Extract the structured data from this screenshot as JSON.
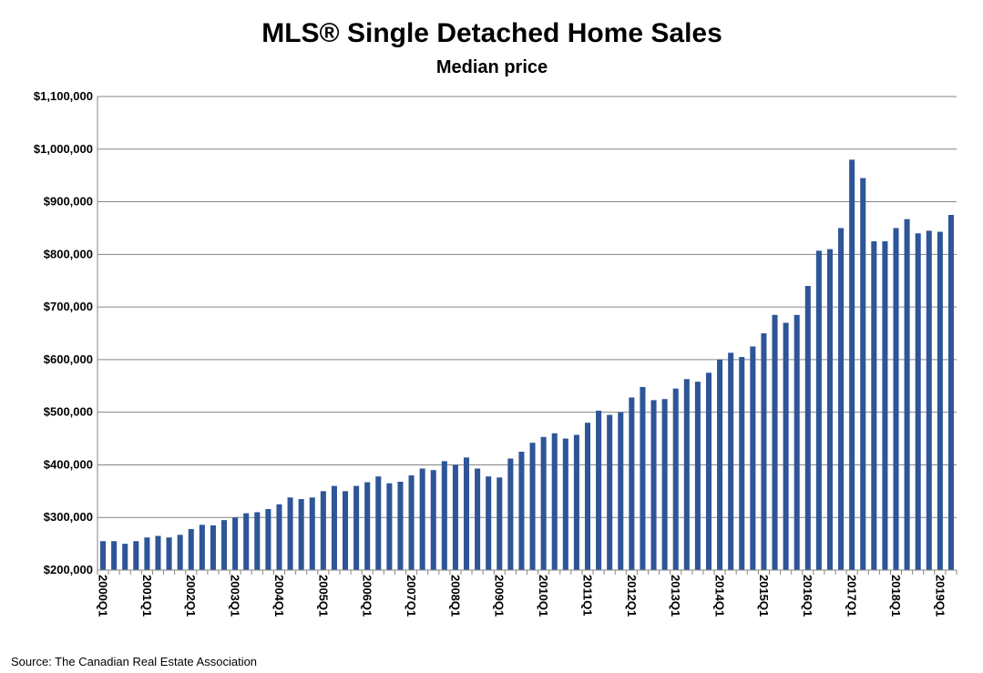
{
  "chart_data": {
    "type": "bar",
    "title": "MLS® Single Detached Home Sales",
    "subtitle": "Median price",
    "source": "Source: The Canadian Real Estate Association",
    "xlabel": "",
    "ylabel": "",
    "ylim": [
      200000,
      1100000
    ],
    "y_ticks": [
      200000,
      300000,
      400000,
      500000,
      600000,
      700000,
      800000,
      900000,
      1000000,
      1100000
    ],
    "y_tick_labels": [
      "$200,000",
      "$300,000",
      "$400,000",
      "$500,000",
      "$600,000",
      "$700,000",
      "$800,000",
      "$900,000",
      "$1,000,000",
      "$1,100,000"
    ],
    "x_tick_labels": [
      "2000Q1",
      "2001Q1",
      "2002Q1",
      "2003Q1",
      "2004Q1",
      "2005Q1",
      "2006Q1",
      "2007Q1",
      "2008Q1",
      "2009Q1",
      "2010Q1",
      "2011Q1",
      "2012Q1",
      "2013Q1",
      "2014Q1",
      "2015Q1",
      "2016Q1",
      "2017Q1",
      "2018Q1",
      "2019Q1"
    ],
    "grid": true,
    "legend": "none",
    "bar_color": "#2E5597",
    "categories": [
      "2000Q1",
      "2000Q2",
      "2000Q3",
      "2000Q4",
      "2001Q1",
      "2001Q2",
      "2001Q3",
      "2001Q4",
      "2002Q1",
      "2002Q2",
      "2002Q3",
      "2002Q4",
      "2003Q1",
      "2003Q2",
      "2003Q3",
      "2003Q4",
      "2004Q1",
      "2004Q2",
      "2004Q3",
      "2004Q4",
      "2005Q1",
      "2005Q2",
      "2005Q3",
      "2005Q4",
      "2006Q1",
      "2006Q2",
      "2006Q3",
      "2006Q4",
      "2007Q1",
      "2007Q2",
      "2007Q3",
      "2007Q4",
      "2008Q1",
      "2008Q2",
      "2008Q3",
      "2008Q4",
      "2009Q1",
      "2009Q2",
      "2009Q3",
      "2009Q4",
      "2010Q1",
      "2010Q2",
      "2010Q3",
      "2010Q4",
      "2011Q1",
      "2011Q2",
      "2011Q3",
      "2011Q4",
      "2012Q1",
      "2012Q2",
      "2012Q3",
      "2012Q4",
      "2013Q1",
      "2013Q2",
      "2013Q3",
      "2013Q4",
      "2014Q1",
      "2014Q2",
      "2014Q3",
      "2014Q4",
      "2015Q1",
      "2015Q2",
      "2015Q3",
      "2015Q4",
      "2016Q1",
      "2016Q2",
      "2016Q3",
      "2016Q4",
      "2017Q1",
      "2017Q2",
      "2017Q3",
      "2017Q4",
      "2018Q1",
      "2018Q2",
      "2018Q3",
      "2018Q4",
      "2019Q1",
      "2019Q2"
    ],
    "values": [
      255000,
      255000,
      250000,
      255000,
      262000,
      265000,
      262000,
      267000,
      278000,
      286000,
      285000,
      295000,
      300000,
      308000,
      310000,
      316000,
      325000,
      338000,
      335000,
      338000,
      350000,
      360000,
      350000,
      360000,
      367000,
      378000,
      365000,
      368000,
      380000,
      393000,
      390000,
      407000,
      400000,
      414000,
      393000,
      378000,
      376000,
      412000,
      425000,
      442000,
      453000,
      460000,
      450000,
      457000,
      480000,
      503000,
      495000,
      500000,
      528000,
      548000,
      523000,
      525000,
      545000,
      563000,
      558000,
      575000,
      600000,
      613000,
      605000,
      625000,
      650000,
      685000,
      670000,
      685000,
      740000,
      807000,
      810000,
      850000,
      980000,
      945000,
      825000,
      825000,
      850000,
      867000,
      840000,
      845000,
      843000,
      875000
    ]
  }
}
